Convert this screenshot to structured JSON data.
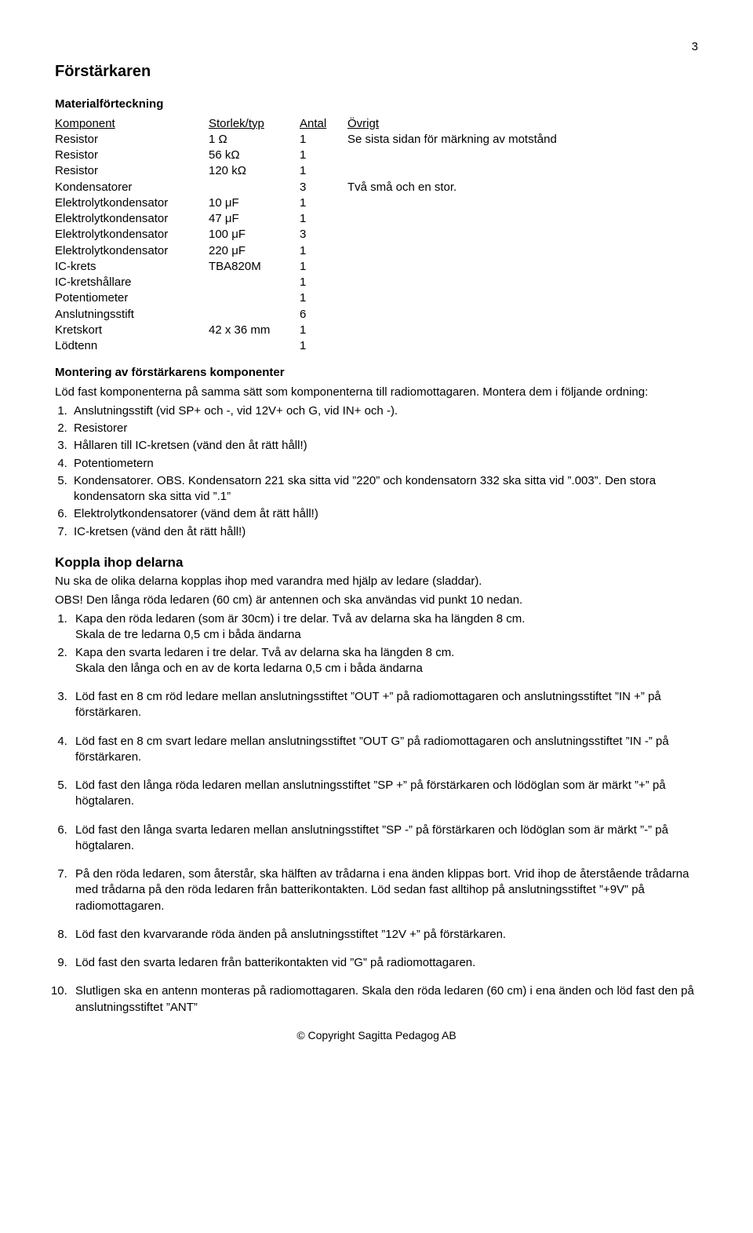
{
  "page_number": "3",
  "title": "Förstärkaren",
  "materials_heading": "Materialförteckning",
  "table": {
    "headers": {
      "component": "Komponent",
      "size": "Storlek/typ",
      "qty": "Antal",
      "note": "Övrigt"
    },
    "rows": [
      {
        "component": "Resistor",
        "size": "1 Ω",
        "qty": "1",
        "note": "Se sista sidan för märkning av motstånd"
      },
      {
        "component": "Resistor",
        "size": "56 kΩ",
        "qty": "1",
        "note": ""
      },
      {
        "component": "Resistor",
        "size": "120 kΩ",
        "qty": "1",
        "note": ""
      },
      {
        "component": "Kondensatorer",
        "size": "",
        "qty": "3",
        "note": "Två små och en stor."
      },
      {
        "component": "Elektrolytkondensator",
        "size": "10 μF",
        "qty": "1",
        "note": ""
      },
      {
        "component": "Elektrolytkondensator",
        "size": "47 μF",
        "qty": "1",
        "note": ""
      },
      {
        "component": "Elektrolytkondensator",
        "size": "100 μF",
        "qty": "3",
        "note": ""
      },
      {
        "component": "Elektrolytkondensator",
        "size": "220 μF",
        "qty": "1",
        "note": ""
      },
      {
        "component": "IC-krets",
        "size": "TBA820M",
        "qty": "1",
        "note": ""
      },
      {
        "component": "IC-kretshållare",
        "size": "",
        "qty": "1",
        "note": ""
      },
      {
        "component": "Potentiometer",
        "size": "",
        "qty": "1",
        "note": ""
      },
      {
        "component": "Anslutningsstift",
        "size": "",
        "qty": "6",
        "note": ""
      },
      {
        "component": "Kretskort",
        "size": "42 x 36 mm",
        "qty": "1",
        "note": ""
      },
      {
        "component": "Lödtenn",
        "size": "",
        "qty": "1",
        "note": ""
      }
    ]
  },
  "assembly": {
    "heading": "Montering av förstärkarens komponenter",
    "intro": "Löd fast komponenterna på samma sätt som komponenterna till radiomottagaren. Montera dem i följande ordning:",
    "items": [
      "Anslutningsstift (vid SP+ och -, vid 12V+ och G, vid IN+ och -).",
      "Resistorer",
      "Hållaren till IC-kretsen (vänd den åt rätt håll!)",
      "Potentiometern",
      "Kondensatorer. OBS. Kondensatorn 221 ska sitta vid ”220” och kondensatorn 332 ska sitta vid ”.003”. Den stora kondensatorn ska sitta vid ”.1”",
      "Elektrolytkondensatorer (vänd dem åt rätt håll!)",
      "IC-kretsen (vänd den åt rätt håll!)"
    ]
  },
  "connect": {
    "heading": "Koppla ihop delarna",
    "line1": "Nu ska de olika delarna kopplas ihop med varandra med hjälp av ledare (sladdar).",
    "line2": "OBS!   Den långa röda ledaren (60 cm) är antennen och ska användas vid punkt 10 nedan.",
    "step1a": "Kapa den röda ledaren (som är 30cm) i tre delar. Två av delarna ska ha längden 8 cm.",
    "step1b": "Skala de tre ledarna 0,5 cm i båda ändarna",
    "step2a": "Kapa den svarta ledaren i tre delar. Två av delarna ska ha längden 8 cm.",
    "step2b": "Skala den långa och en av de korta ledarna 0,5 cm i båda ändarna",
    "step3": "Löd fast en 8 cm röd ledare mellan anslutningsstiftet ”OUT +” på radiomottagaren och anslutningsstiftet ”IN +” på förstärkaren.",
    "step4": "Löd fast en 8 cm svart ledare mellan anslutningsstiftet ”OUT G” på radiomottagaren och anslutningsstiftet ”IN -” på förstärkaren.",
    "step5": "Löd fast den långa röda ledaren mellan anslutningsstiftet ”SP +” på förstärkaren och lödöglan som är märkt ”+” på högtalaren.",
    "step6": "Löd fast den långa svarta ledaren mellan anslutningsstiftet ”SP -” på förstärkaren och lödöglan som är märkt ”-” på högtalaren.",
    "step7": "På den röda ledaren, som återstår, ska hälften av trådarna i ena änden klippas bort. Vrid ihop de återstående trådarna med trådarna på den röda ledaren från batterikontakten. Löd sedan fast alltihop på anslutningsstiftet ”+9V” på radiomottagaren.",
    "step8": "Löd fast den kvarvarande röda änden på anslutningsstiftet ”12V +” på förstärkaren.",
    "step9": "Löd fast den svarta ledaren från batterikontakten vid ”G” på radiomottagaren.",
    "step10": "Slutligen ska en antenn monteras på radiomottagaren. Skala den röda ledaren (60 cm) i ena änden och löd fast den på anslutningsstiftet ”ANT”"
  },
  "footer": "© Copyright Sagitta Pedagog AB"
}
